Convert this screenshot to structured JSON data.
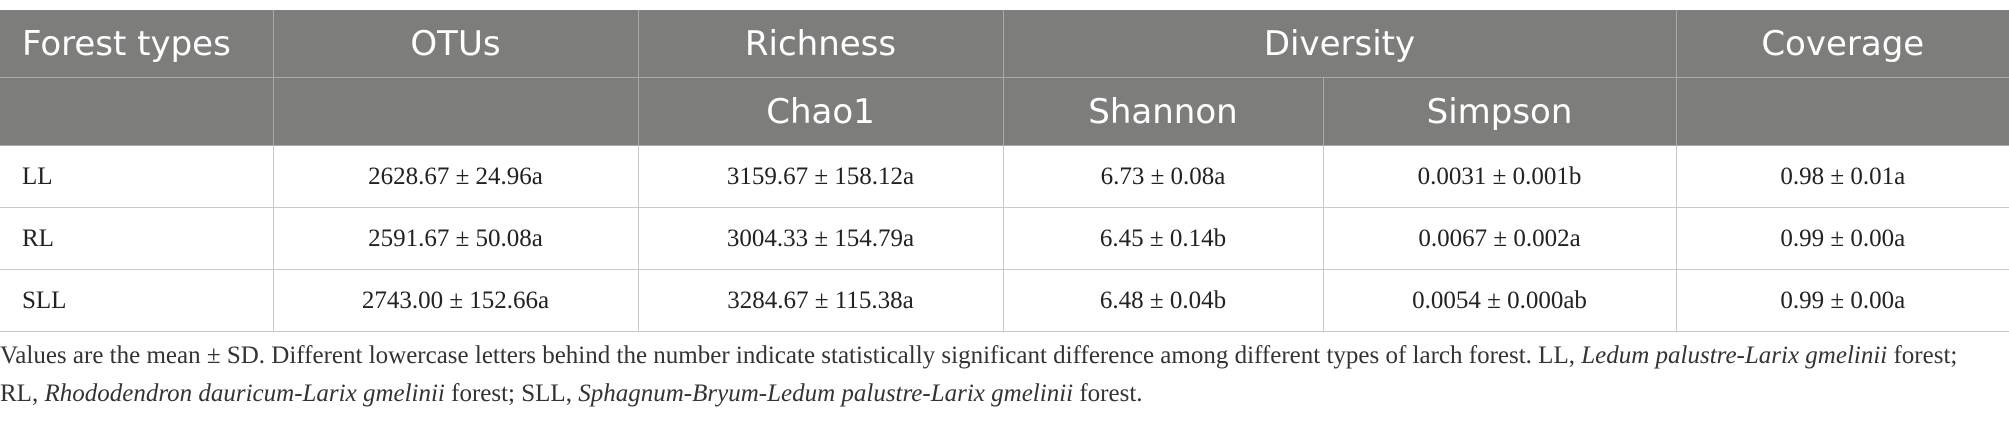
{
  "header": [
    "Forest types",
    "OTUs",
    "Richness",
    "Diversity",
    "Coverage"
  ],
  "subheader": [
    "Chao1",
    "Shannon",
    "Simpson"
  ],
  "rows": [
    [
      "LL",
      "2628.67 ± 24.96a",
      "3159.67 ± 158.12a",
      "6.73 ± 0.08a",
      "0.0031 ± 0.001b",
      "0.98 ± 0.01a"
    ],
    [
      "RL",
      "2591.67 ± 50.08a",
      "3004.33 ± 154.79a",
      "6.45 ± 0.14b",
      "0.0067 ± 0.002a",
      "0.99 ± 0.00a"
    ],
    [
      "SLL",
      "2743.00 ± 152.66a",
      "3284.67 ± 115.38a",
      "6.48 ± 0.04b",
      "0.0054 ± 0.000ab",
      "0.99 ± 0.00a"
    ]
  ],
  "footnote": [
    {
      "text": "Values are the mean ± SD. Different lowercase letters behind the number indicate statistically significant difference among different types of larch forest. LL, ",
      "italic": false
    },
    {
      "text": "Ledum palustre-Larix gmelinii",
      "italic": true
    },
    {
      "text": " forest; RL, ",
      "italic": false
    },
    {
      "text": "Rhododendron dauricum-Larix gmelinii",
      "italic": true
    },
    {
      "text": " forest; SLL, ",
      "italic": false
    },
    {
      "text": "Sphagnum-Bryum-Ledum palustre-Larix gmelinii",
      "italic": true
    },
    {
      "text": " forest.",
      "italic": false
    }
  ]
}
